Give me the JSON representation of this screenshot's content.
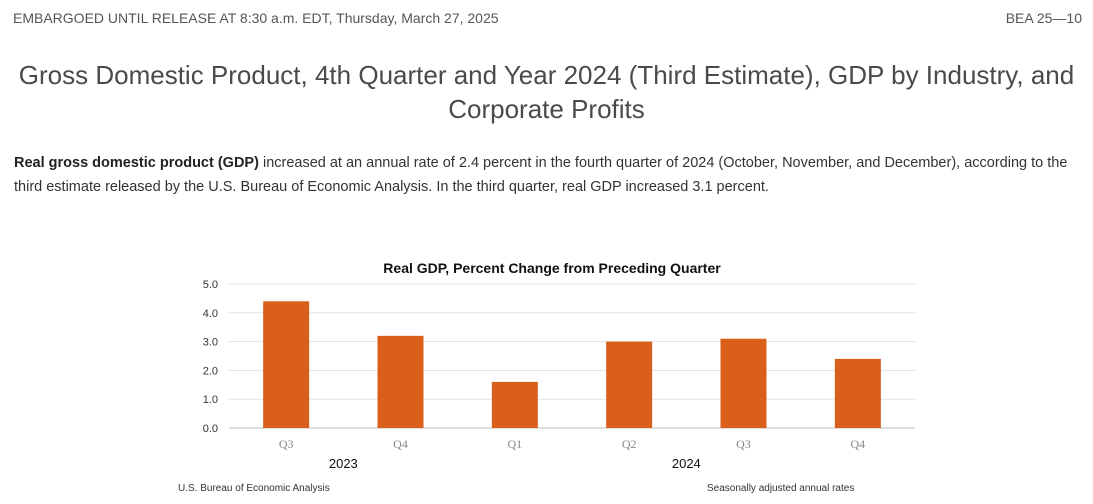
{
  "header": {
    "embargo": "EMBARGOED UNTIL RELEASE AT 8:30 a.m. EDT, Thursday, March 27, 2025",
    "release_id": "BEA 25—10"
  },
  "title": "Gross Domestic Product, 4th Quarter and Year 2024 (Third Estimate), GDP by Industry, and Corporate Profits",
  "lead": {
    "bold": "Real gross domestic product (GDP)",
    "text": " increased at an annual rate of 2.4 percent in the fourth quarter of 2024 (October, November, and December), according to the third estimate released by the U.S. Bureau of Economic Analysis. In the third quarter, real GDP increased 3.1 percent."
  },
  "chart_data": {
    "type": "bar",
    "title": "Real GDP, Percent Change from Preceding Quarter",
    "categories": [
      "Q3",
      "Q4",
      "Q1",
      "Q2",
      "Q3",
      "Q4"
    ],
    "year_labels": [
      "2023",
      "2024"
    ],
    "values": [
      4.4,
      3.2,
      1.6,
      3.0,
      3.1,
      2.4
    ],
    "yticks": [
      "0.0",
      "1.0",
      "2.0",
      "3.0",
      "4.0",
      "5.0"
    ],
    "ylim": [
      0,
      5
    ],
    "bar_color": "#d95f1a",
    "grid": true,
    "xlabel": "",
    "ylabel": ""
  },
  "footer": {
    "source": "U.S. Bureau of Economic Analysis",
    "note": "Seasonally adjusted annual rates"
  }
}
